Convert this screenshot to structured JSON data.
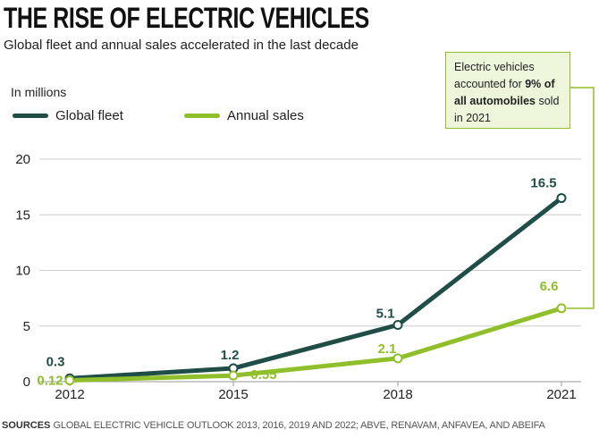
{
  "header": {
    "title": "THE RISE OF ELECTRIC VEHICLES",
    "subtitle": "Global fleet and annual sales accelerated in the last decade"
  },
  "unit_label": "In millions",
  "legend": {
    "fleet": "Global fleet",
    "sales": "Annual sales"
  },
  "callout": {
    "text_before": "Electric vehicles accounted for ",
    "text_bold": "9% of all automobiles",
    "text_after": " sold in 2021"
  },
  "sources": {
    "label": "SOURCES",
    "text": "GLOBAL ELECTRIC VEHICLE OUTLOOK 2013, 2016, 2019 AND 2022; ABVE, RENAVAM, ANFAVEA, AND ABEIFA"
  },
  "colors": {
    "fleet": "#1f4e47",
    "sales": "#8fbf2a",
    "grid": "#cccccc",
    "callout_bg": "#edf5da"
  },
  "chart_data": {
    "type": "line",
    "title": "THE RISE OF ELECTRIC VEHICLES",
    "subtitle": "Global fleet and annual sales accelerated in the last decade",
    "ylabel": "In millions",
    "xlabel": "",
    "categories": [
      "2012",
      "2015",
      "2018",
      "2021"
    ],
    "yticks": [
      "0",
      "5",
      "10",
      "15",
      "20"
    ],
    "ylim": [
      0,
      20
    ],
    "grid": true,
    "legend_position": "top-left",
    "series": [
      {
        "name": "Global fleet",
        "values": [
          0.3,
          1.2,
          5.1,
          16.5
        ],
        "labels": [
          "0.3",
          "1.2",
          "5.1",
          "16.5"
        ]
      },
      {
        "name": "Annual sales",
        "values": [
          0.12,
          0.55,
          2.1,
          6.6
        ],
        "labels": [
          "0.12",
          "0.55",
          "2.1",
          "6.6"
        ]
      }
    ]
  }
}
